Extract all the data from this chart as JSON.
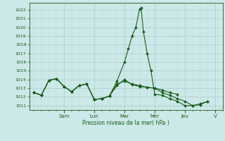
{
  "xlabel": "Pression niveau de la mer( hPa )",
  "bg_color": "#cce8e8",
  "grid_color_major": "#aacccc",
  "grid_color_minor": "#bbdddd",
  "line_color": "#1a5c1a",
  "ylim": [
    1010.5,
    1022.8
  ],
  "xlim": [
    -0.3,
    12.5
  ],
  "yticks": [
    1011,
    1012,
    1013,
    1014,
    1015,
    1016,
    1017,
    1018,
    1019,
    1020,
    1021,
    1022
  ],
  "day_labels": [
    "Sam",
    "Lun",
    "Mar",
    "Mer",
    "Jeu",
    "V"
  ],
  "day_positions": [
    2.0,
    4.0,
    6.0,
    8.0,
    10.0,
    12.0
  ],
  "series1": [
    [
      0.0,
      1012.5
    ],
    [
      0.5,
      1012.2
    ],
    [
      1.0,
      1013.9
    ],
    [
      1.5,
      1014.1
    ],
    [
      2.0,
      1013.2
    ],
    [
      2.5,
      1012.6
    ],
    [
      3.0,
      1013.3
    ],
    [
      3.5,
      1013.5
    ],
    [
      4.0,
      1011.7
    ],
    [
      4.5,
      1011.8
    ],
    [
      5.0,
      1012.1
    ],
    [
      5.5,
      1013.3
    ],
    [
      6.0,
      1014.0
    ],
    [
      6.5,
      1013.4
    ],
    [
      7.0,
      1013.2
    ],
    [
      7.5,
      1013.1
    ],
    [
      8.0,
      1013.0
    ],
    [
      8.5,
      1012.8
    ],
    [
      9.0,
      1012.5
    ],
    [
      9.5,
      1012.3
    ]
  ],
  "series2": [
    [
      0.0,
      1012.5
    ],
    [
      0.5,
      1012.2
    ],
    [
      1.0,
      1013.9
    ],
    [
      1.5,
      1014.1
    ],
    [
      2.0,
      1013.2
    ],
    [
      2.5,
      1012.6
    ],
    [
      3.0,
      1013.3
    ],
    [
      3.5,
      1013.5
    ],
    [
      4.0,
      1011.7
    ],
    [
      4.5,
      1011.8
    ],
    [
      5.0,
      1012.1
    ],
    [
      5.5,
      1013.5
    ],
    [
      6.0,
      1013.8
    ],
    [
      6.5,
      1013.5
    ],
    [
      7.0,
      1013.3
    ],
    [
      7.5,
      1013.1
    ],
    [
      8.0,
      1013.0
    ],
    [
      8.5,
      1012.5
    ],
    [
      9.0,
      1012.2
    ],
    [
      9.5,
      1011.8
    ],
    [
      10.0,
      1011.5
    ],
    [
      10.5,
      1011.0
    ],
    [
      11.0,
      1011.1
    ],
    [
      11.5,
      1011.5
    ]
  ],
  "series3": [
    [
      0.0,
      1012.5
    ],
    [
      0.5,
      1012.2
    ],
    [
      1.0,
      1013.9
    ],
    [
      1.5,
      1014.1
    ],
    [
      2.0,
      1013.2
    ],
    [
      2.5,
      1012.6
    ],
    [
      3.0,
      1013.3
    ],
    [
      3.5,
      1013.5
    ],
    [
      4.0,
      1011.7
    ],
    [
      4.5,
      1011.8
    ],
    [
      5.0,
      1012.1
    ],
    [
      5.5,
      1013.8
    ],
    [
      6.0,
      1016.0
    ],
    [
      6.25,
      1017.5
    ],
    [
      6.5,
      1019.0
    ],
    [
      6.75,
      1020.0
    ],
    [
      7.0,
      1022.1
    ],
    [
      7.1,
      1022.2
    ],
    [
      7.25,
      1019.5
    ],
    [
      7.5,
      1017.0
    ],
    [
      7.75,
      1015.0
    ],
    [
      8.0,
      1012.3
    ],
    [
      8.5,
      1012.2
    ],
    [
      9.0,
      1011.8
    ],
    [
      9.5,
      1011.5
    ],
    [
      10.0,
      1011.0
    ],
    [
      10.5,
      1011.0
    ],
    [
      11.0,
      1011.2
    ],
    [
      11.5,
      1011.5
    ]
  ]
}
